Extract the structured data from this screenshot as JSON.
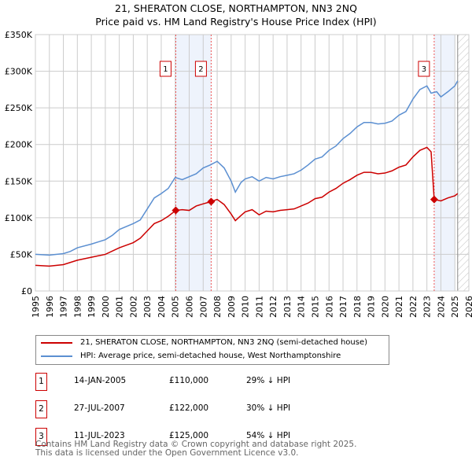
{
  "title": "21, SHERATON CLOSE, NORTHAMPTON, NN3 2NQ",
  "subtitle": "Price paid vs. HM Land Registry's House Price Index (HPI)",
  "colors": {
    "property": "#cc0000",
    "hpi": "#5b8fd1",
    "shade": "#eef3fc"
  },
  "chart_data": {
    "type": "line",
    "xlim": [
      1995,
      2026
    ],
    "ylim": [
      0,
      350000
    ],
    "yticks": [
      0,
      50000,
      100000,
      150000,
      200000,
      250000,
      300000,
      350000
    ],
    "ytick_labels": [
      "£0",
      "£50K",
      "£100K",
      "£150K",
      "£200K",
      "£250K",
      "£300K",
      "£350K"
    ],
    "xticks": [
      "1995",
      "1996",
      "1997",
      "1998",
      "1999",
      "2000",
      "2001",
      "2002",
      "2003",
      "2004",
      "2005",
      "2006",
      "2007",
      "2008",
      "2009",
      "2010",
      "2011",
      "2012",
      "2013",
      "2014",
      "2015",
      "2016",
      "2017",
      "2018",
      "2019",
      "2020",
      "2021",
      "2022",
      "2023",
      "2024",
      "2025",
      "2026"
    ],
    "shaded": [
      [
        2005.04,
        2007.57
      ],
      [
        2023.52,
        2025.0
      ]
    ],
    "forecast_from": 2025.2,
    "series": [
      {
        "name": "21, SHERATON CLOSE, NORTHAMPTON, NN3 2NQ (semi-detached house)",
        "color": "#cc0000",
        "x": [
          1995,
          1996,
          1997,
          1998,
          1999,
          2000,
          2001,
          2002,
          2002.5,
          2003,
          2003.5,
          2004,
          2004.5,
          2005.04,
          2005.5,
          2006,
          2006.5,
          2007,
          2007.57,
          2008,
          2008.5,
          2009,
          2009.3,
          2009.7,
          2010,
          2010.5,
          2011,
          2011.5,
          2012,
          2012.5,
          2013,
          2013.5,
          2014,
          2014.5,
          2015,
          2015.5,
          2016,
          2016.5,
          2017,
          2017.5,
          2018,
          2018.5,
          2019,
          2019.5,
          2020,
          2020.5,
          2021,
          2021.5,
          2022,
          2022.5,
          2023,
          2023.3,
          2023.52,
          2024,
          2024.5,
          2025,
          2025.2
        ],
        "y": [
          35000,
          34000,
          36000,
          42000,
          46000,
          50000,
          59000,
          66000,
          72000,
          82000,
          92000,
          96000,
          102000,
          110000,
          111000,
          110000,
          116000,
          119000,
          122000,
          125000,
          118000,
          105000,
          96000,
          103000,
          108000,
          111000,
          104000,
          109000,
          108000,
          110000,
          111000,
          112000,
          116000,
          120000,
          126000,
          128000,
          135000,
          140000,
          147000,
          152000,
          158000,
          162000,
          162000,
          160000,
          161000,
          164000,
          169000,
          172000,
          183000,
          192000,
          196000,
          190000,
          125000,
          123000,
          127000,
          130000,
          133000
        ]
      },
      {
        "name": "HPI: Average price, semi-detached house, West Northamptonshire",
        "color": "#5b8fd1",
        "x": [
          1995,
          1996,
          1997,
          1997.5,
          1998,
          1999,
          2000,
          2000.5,
          2001,
          2002,
          2002.5,
          2003,
          2003.5,
          2004,
          2004.5,
          2005,
          2005.5,
          2006,
          2006.5,
          2007,
          2007.5,
          2008,
          2008.5,
          2009,
          2009.3,
          2009.7,
          2010,
          2010.5,
          2011,
          2011.5,
          2012,
          2012.5,
          2013,
          2013.5,
          2014,
          2014.5,
          2015,
          2015.5,
          2016,
          2016.5,
          2017,
          2017.5,
          2018,
          2018.5,
          2019,
          2019.5,
          2020,
          2020.5,
          2021,
          2021.5,
          2022,
          2022.5,
          2023,
          2023.3,
          2023.7,
          2024,
          2024.5,
          2025,
          2025.2
        ],
        "y": [
          50000,
          49000,
          51000,
          54000,
          59000,
          64000,
          70000,
          76000,
          84000,
          92000,
          97000,
          112000,
          127000,
          133000,
          140000,
          155000,
          152000,
          156000,
          160000,
          168000,
          172000,
          177000,
          168000,
          150000,
          135000,
          148000,
          153000,
          156000,
          150000,
          155000,
          153000,
          156000,
          158000,
          160000,
          165000,
          172000,
          180000,
          183000,
          192000,
          198000,
          208000,
          215000,
          224000,
          230000,
          230000,
          228000,
          229000,
          232000,
          240000,
          245000,
          262000,
          275000,
          280000,
          270000,
          272000,
          265000,
          272000,
          280000,
          287000
        ]
      }
    ],
    "sales": [
      {
        "label": "1",
        "x": 2005.04,
        "y": 110000,
        "date": "14-JAN-2005",
        "price": "£110,000",
        "hpi": "29% ↓ HPI"
      },
      {
        "label": "2",
        "x": 2007.57,
        "y": 122000,
        "date": "27-JUL-2007",
        "price": "£122,000",
        "hpi": "30% ↓ HPI"
      },
      {
        "label": "3",
        "x": 2023.52,
        "y": 125000,
        "date": "11-JUL-2023",
        "price": "£125,000",
        "hpi": "54% ↓ HPI"
      }
    ]
  },
  "legend": {
    "property": "21, SHERATON CLOSE, NORTHAMPTON, NN3 2NQ (semi-detached house)",
    "hpi": "HPI: Average price, semi-detached house, West Northamptonshire"
  },
  "footer": {
    "line1": "Contains HM Land Registry data © Crown copyright and database right 2025.",
    "line2": "This data is licensed under the Open Government Licence v3.0."
  }
}
